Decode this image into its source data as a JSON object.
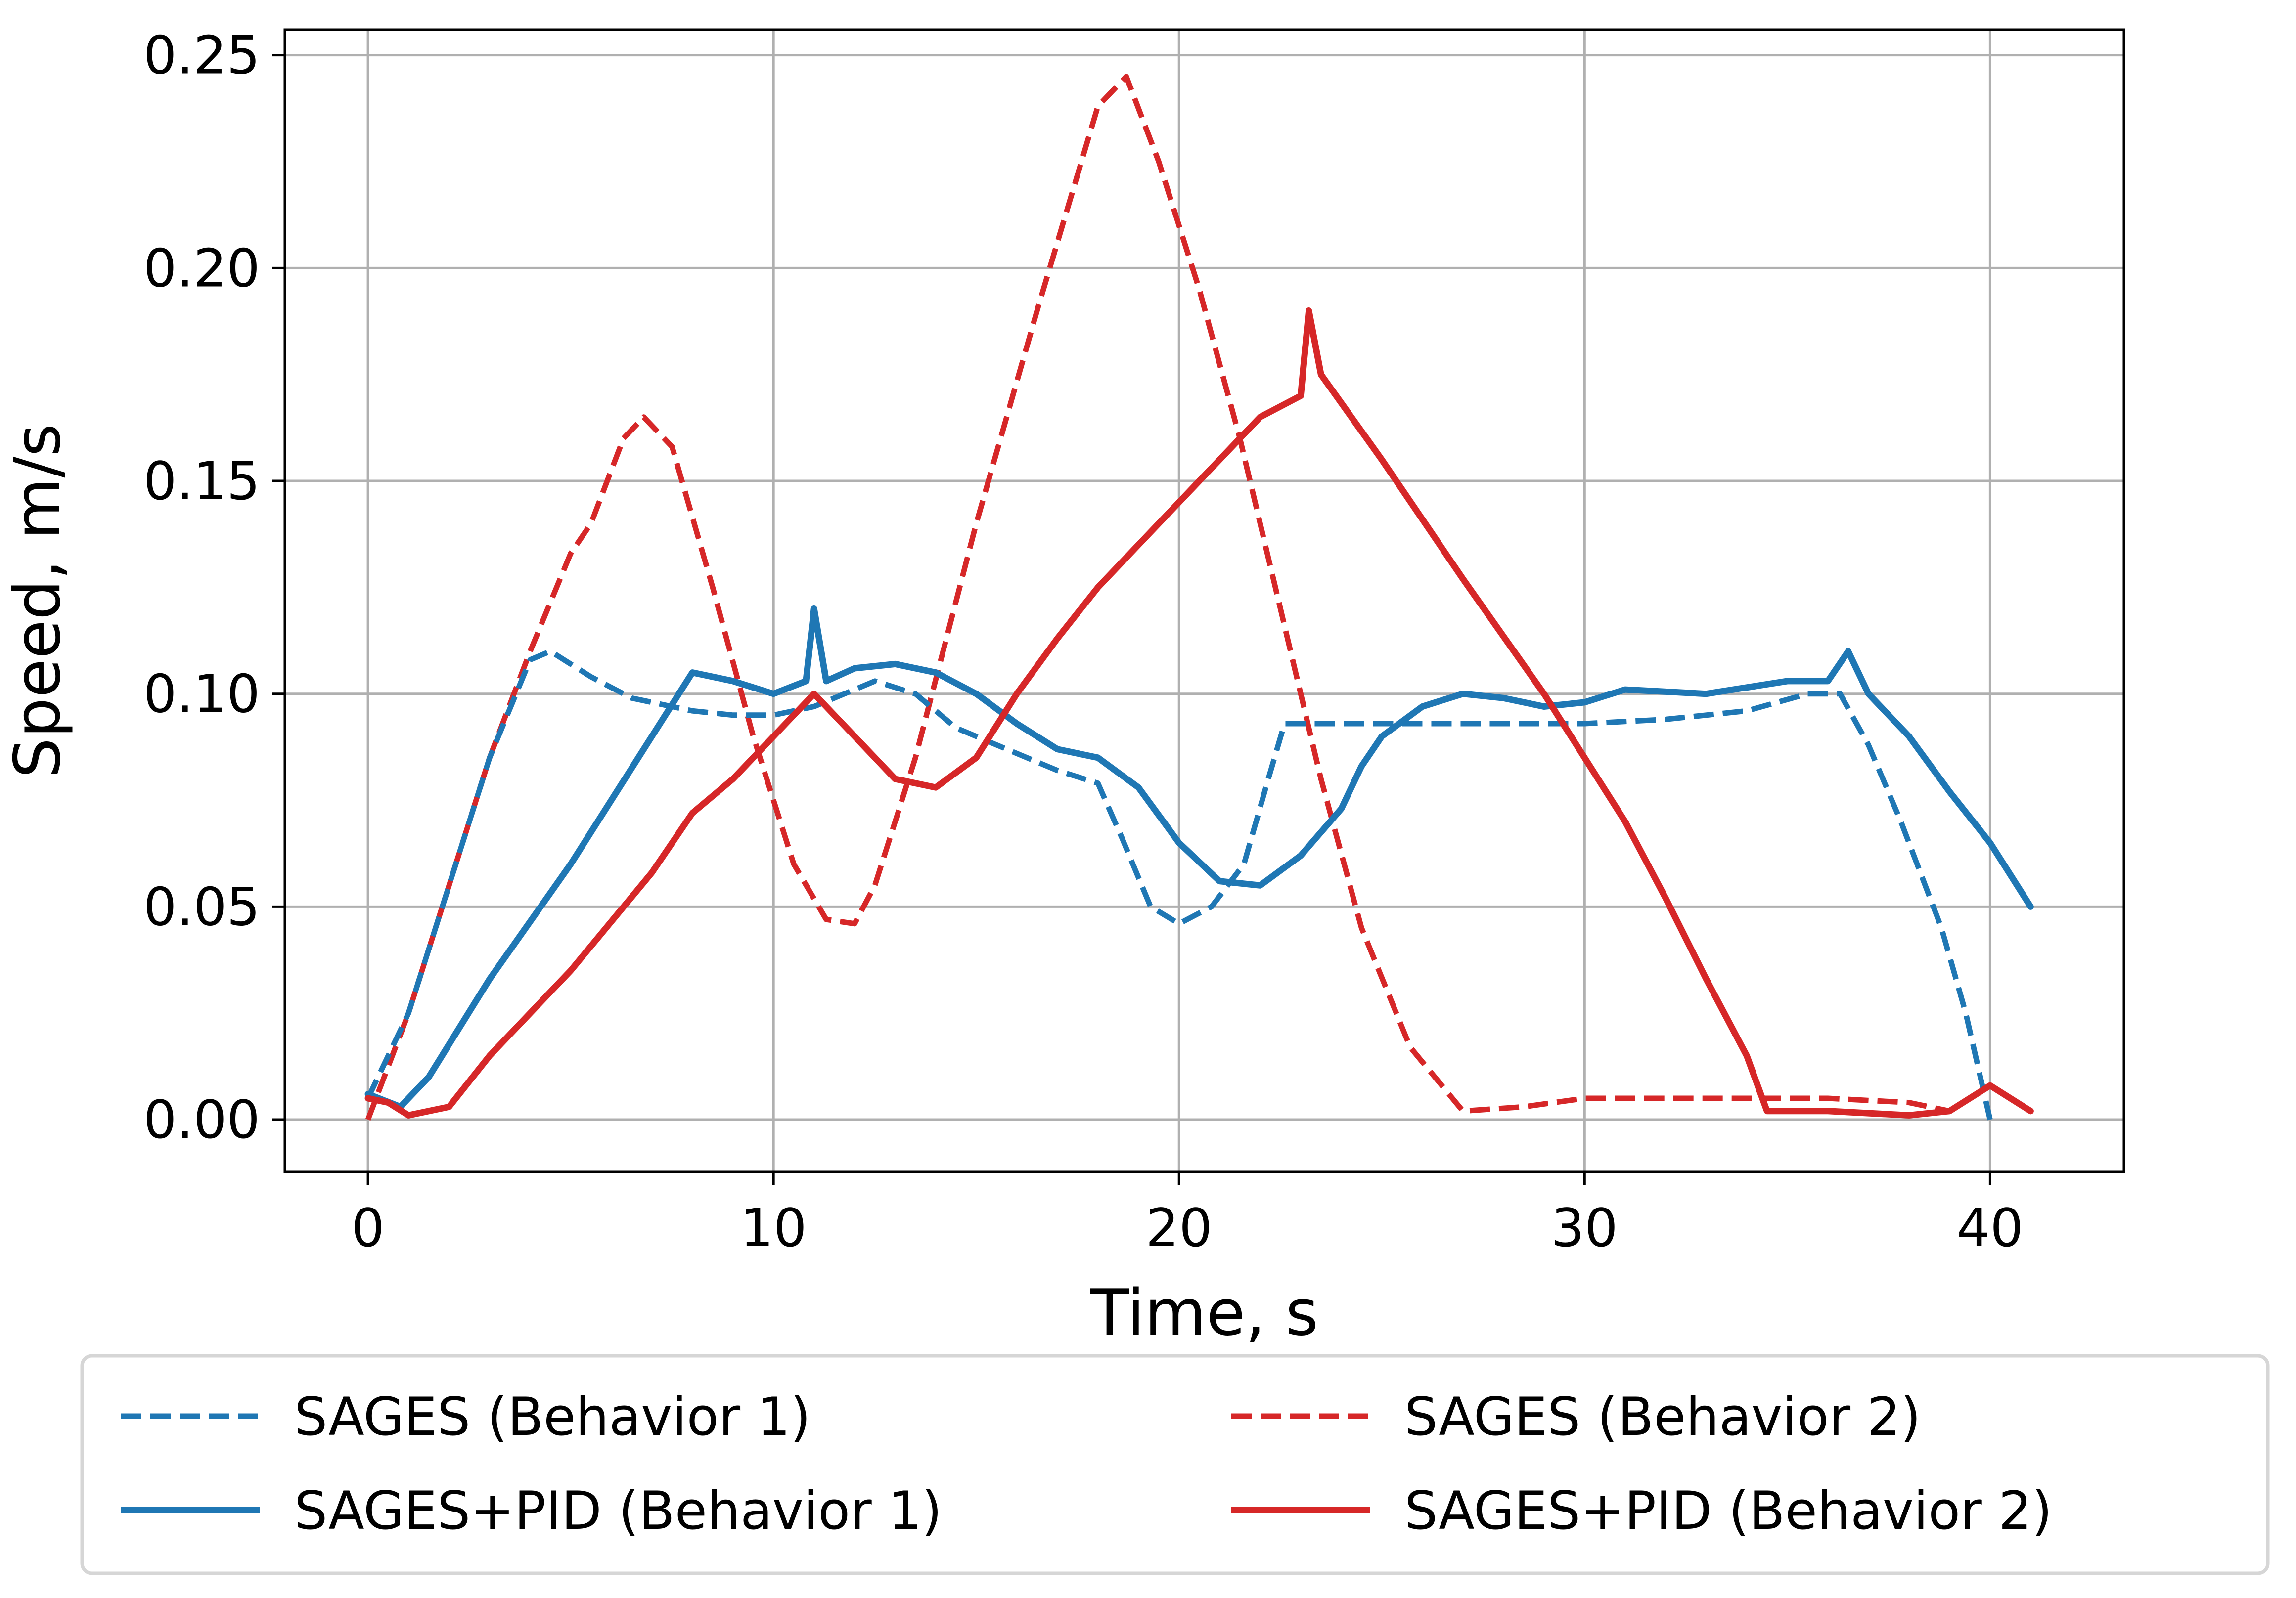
{
  "chart_data": {
    "type": "line",
    "title": "",
    "xlabel": "Time, s",
    "ylabel": "Speed, m/s",
    "xlim": [
      -2.05,
      43.3
    ],
    "ylim": [
      -0.0123,
      0.256
    ],
    "xticks": [
      0,
      10,
      20,
      30,
      40
    ],
    "xtick_labels": [
      "0",
      "10",
      "20",
      "30",
      "40"
    ],
    "yticks": [
      0.0,
      0.05,
      0.1,
      0.15,
      0.2,
      0.25
    ],
    "ytick_labels": [
      "0.00",
      "0.05",
      "0.10",
      "0.15",
      "0.20",
      "0.25"
    ],
    "grid": true,
    "legend": {
      "placement": "bottom-outside",
      "columns": 2
    },
    "series": [
      {
        "name": "SAGES (Behavior 1)",
        "color": "#1f77b4",
        "style": "dashed",
        "x": [
          0,
          1,
          2,
          3,
          4,
          4.5,
          5.5,
          6.5,
          8,
          9,
          10,
          11,
          12.5,
          13.5,
          14.5,
          16,
          17,
          18,
          18.6,
          19.3,
          20,
          20.8,
          21.6,
          22.2,
          22.6,
          24,
          26,
          28,
          30,
          32,
          34,
          35.5,
          36.3,
          37,
          37.8,
          38.8,
          39.4,
          40
        ],
        "y": [
          0.005,
          0.025,
          0.055,
          0.085,
          0.108,
          0.11,
          0.104,
          0.099,
          0.096,
          0.095,
          0.095,
          0.097,
          0.103,
          0.1,
          0.092,
          0.086,
          0.082,
          0.079,
          0.066,
          0.05,
          0.046,
          0.05,
          0.06,
          0.08,
          0.093,
          0.093,
          0.093,
          0.093,
          0.093,
          0.094,
          0.096,
          0.1,
          0.1,
          0.088,
          0.07,
          0.045,
          0.025,
          0.0
        ]
      },
      {
        "name": "SAGES+PID (Behavior 1)",
        "color": "#1f77b4",
        "style": "solid",
        "x": [
          0,
          0.8,
          1.5,
          3,
          5,
          7,
          8,
          9,
          10,
          10.8,
          11,
          11.3,
          12,
          13,
          14,
          15,
          16,
          17,
          18,
          19,
          20,
          21,
          22,
          23,
          24,
          24.5,
          25,
          26,
          27,
          28,
          29,
          30,
          31,
          33,
          35,
          36,
          36.5,
          37,
          38,
          39,
          40,
          41
        ],
        "y": [
          0.006,
          0.003,
          0.01,
          0.033,
          0.06,
          0.09,
          0.105,
          0.103,
          0.1,
          0.103,
          0.12,
          0.103,
          0.106,
          0.107,
          0.105,
          0.1,
          0.093,
          0.087,
          0.085,
          0.078,
          0.065,
          0.056,
          0.055,
          0.062,
          0.073,
          0.083,
          0.09,
          0.097,
          0.1,
          0.099,
          0.097,
          0.098,
          0.101,
          0.1,
          0.103,
          0.103,
          0.11,
          0.1,
          0.09,
          0.077,
          0.065,
          0.05
        ]
      },
      {
        "name": "SAGES (Behavior 2)",
        "color": "#d62728",
        "style": "dashed",
        "x": [
          0,
          1,
          2,
          3,
          4,
          5,
          5.5,
          6.3,
          6.8,
          7.5,
          8.5,
          9.5,
          10.5,
          11.3,
          12,
          12.5,
          13.5,
          15,
          16.5,
          18,
          18.7,
          19.5,
          20.5,
          21.5,
          22.5,
          23.5,
          24.5,
          25.7,
          27,
          28.5,
          30,
          32,
          34,
          36,
          38,
          39
        ],
        "y": [
          0.0,
          0.025,
          0.055,
          0.085,
          0.11,
          0.133,
          0.14,
          0.16,
          0.165,
          0.158,
          0.125,
          0.09,
          0.06,
          0.047,
          0.046,
          0.055,
          0.085,
          0.14,
          0.19,
          0.238,
          0.245,
          0.225,
          0.195,
          0.16,
          0.12,
          0.08,
          0.045,
          0.017,
          0.002,
          0.003,
          0.005,
          0.005,
          0.005,
          0.005,
          0.004,
          0.002
        ]
      },
      {
        "name": "SAGES+PID (Behavior 2)",
        "color": "#d62728",
        "style": "solid",
        "x": [
          0,
          0.5,
          1,
          2,
          3,
          5,
          7,
          8,
          9,
          10,
          11,
          12,
          13,
          14,
          15,
          16,
          17,
          18,
          19,
          20,
          21,
          22,
          23,
          23.2,
          23.5,
          25,
          27,
          29,
          31,
          32,
          33,
          34,
          34.5,
          36,
          38,
          39,
          40,
          41
        ],
        "y": [
          0.005,
          0.004,
          0.001,
          0.003,
          0.015,
          0.035,
          0.058,
          0.072,
          0.08,
          0.09,
          0.1,
          0.09,
          0.08,
          0.078,
          0.085,
          0.1,
          0.113,
          0.125,
          0.135,
          0.145,
          0.155,
          0.165,
          0.17,
          0.19,
          0.175,
          0.155,
          0.127,
          0.1,
          0.07,
          0.052,
          0.033,
          0.015,
          0.002,
          0.002,
          0.001,
          0.002,
          0.008,
          0.002
        ]
      }
    ]
  }
}
